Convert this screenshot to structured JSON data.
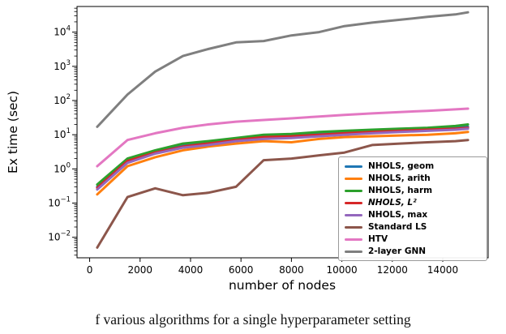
{
  "caption": "f various algorithms for a single hyperparameter setting",
  "chart_data": {
    "type": "line",
    "title": "",
    "xlabel": "number of nodes",
    "ylabel": "Ex time (sec)",
    "y_scale": "log",
    "grid": false,
    "legend_position": "lower right",
    "x_ticks": [
      0,
      2000,
      4000,
      6000,
      8000,
      10000,
      12000,
      14000
    ],
    "y_tick_exponents": [
      -2,
      -1,
      0,
      1,
      2,
      3,
      4
    ],
    "xlim": [
      -500,
      15800
    ],
    "ylim_exponents": [
      -2.6,
      4.75
    ],
    "x": [
      300,
      1500,
      2600,
      3700,
      4700,
      5800,
      6900,
      8000,
      9100,
      10100,
      11200,
      12300,
      13400,
      14500,
      15000
    ],
    "series": [
      {
        "name": "NHOLS, geom",
        "color": "#1f77b4",
        "values": [
          0.3,
          1.8,
          3.2,
          5.0,
          6.0,
          7.5,
          9.0,
          9.5,
          11,
          12,
          13,
          14,
          15,
          16,
          17
        ]
      },
      {
        "name": "NHOLS, arith",
        "color": "#ff7f0e",
        "values": [
          0.18,
          1.2,
          2.2,
          3.5,
          4.5,
          5.5,
          6.5,
          6.0,
          7.5,
          8.5,
          9.0,
          9.5,
          10,
          11,
          12
        ]
      },
      {
        "name": "NHOLS, harm",
        "color": "#2ca02c",
        "values": [
          0.35,
          2.0,
          3.5,
          5.5,
          6.5,
          8.0,
          10.0,
          10.5,
          12,
          13,
          14,
          15,
          16,
          18,
          20
        ]
      },
      {
        "name": "NHOLS, L²",
        "color": "#d62728",
        "italic": true,
        "values": [
          0.28,
          1.7,
          3.0,
          4.5,
          5.5,
          7.0,
          8.5,
          9.0,
          10,
          11,
          12,
          13,
          14,
          15,
          16
        ]
      },
      {
        "name": "NHOLS, max",
        "color": "#9467bd",
        "values": [
          0.25,
          1.5,
          2.8,
          4.2,
          5.0,
          6.5,
          7.5,
          8.0,
          9.0,
          10,
          11,
          12,
          13,
          14,
          15
        ]
      },
      {
        "name": "Standard LS",
        "color": "#8c564b",
        "values": [
          0.005,
          0.15,
          0.27,
          0.17,
          0.2,
          0.3,
          1.8,
          2.0,
          2.5,
          3.0,
          5.0,
          5.5,
          6.0,
          6.5,
          7.0
        ]
      },
      {
        "name": "HTV",
        "color": "#e377c2",
        "values": [
          1.2,
          7,
          11,
          16,
          20,
          24,
          27,
          30,
          34,
          38,
          42,
          46,
          50,
          55,
          58
        ]
      },
      {
        "name": "2-layer GNN",
        "color": "#7f7f7f",
        "values": [
          17,
          150,
          700,
          2000,
          3200,
          5000,
          5500,
          8000,
          10000,
          15000,
          19000,
          23000,
          28000,
          33000,
          38000
        ]
      }
    ]
  }
}
